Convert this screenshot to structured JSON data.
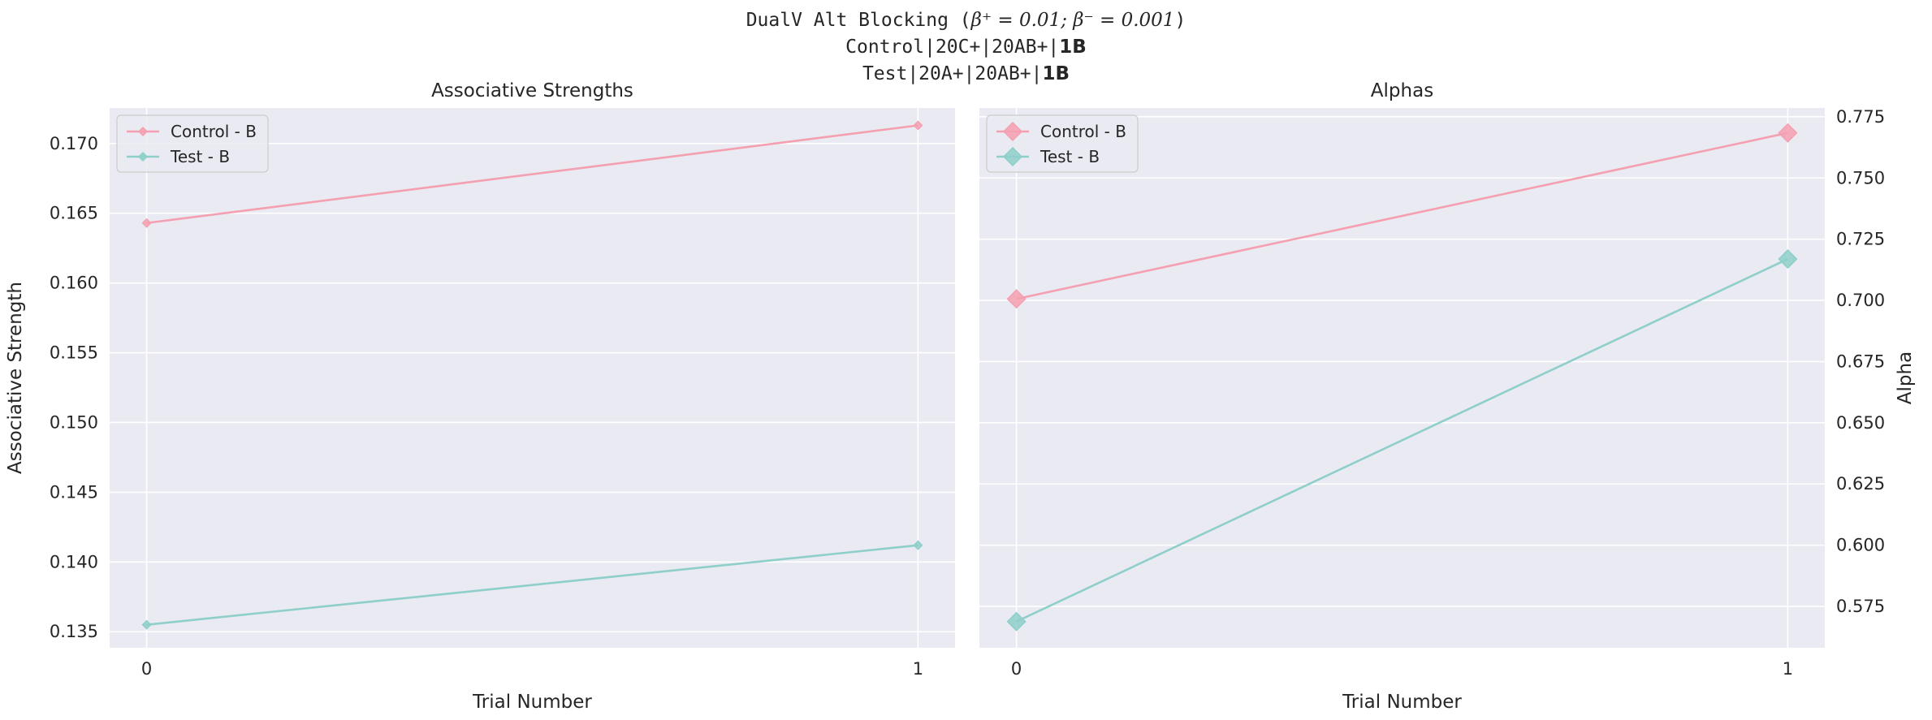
{
  "figure": {
    "suptitle_line1_prefix": "DualV Alt Blocking (",
    "suptitle_line1_math": "β⁺ = 0.01; β⁻ = 0.001",
    "suptitle_line1_suffix": ")",
    "suptitle_line2_prefix": "Control|20C+|20AB+|",
    "suptitle_line2_bold": "1B",
    "suptitle_line3_prefix": "Test|20A+|20AB+|",
    "suptitle_line3_bold": "1B"
  },
  "chart_data": [
    {
      "type": "line",
      "title": "Associative Strengths",
      "xlabel": "Trial Number",
      "ylabel": "Associative Strength",
      "x": [
        0,
        1
      ],
      "xticks": [
        "0",
        "1"
      ],
      "xlim": [
        -0.048,
        1.048
      ],
      "ylim": [
        0.13385,
        0.17255
      ],
      "yticks": [
        "0.135",
        "0.140",
        "0.145",
        "0.150",
        "0.155",
        "0.160",
        "0.165",
        "0.170"
      ],
      "grid": true,
      "legend": "upper-left",
      "series": [
        {
          "name": "Control - B",
          "values": [
            0.1643,
            0.1713
          ],
          "color": "#f4a0b0",
          "marker": "diamond",
          "marker_size": "small"
        },
        {
          "name": "Test - B",
          "values": [
            0.1355,
            0.1412
          ],
          "color": "#8ecfca",
          "marker": "diamond",
          "marker_size": "small"
        }
      ]
    },
    {
      "type": "line",
      "title": "Alphas",
      "xlabel": "Trial Number",
      "ylabel": "Alpha",
      "yaxis_side": "right",
      "x": [
        0,
        1
      ],
      "xticks": [
        "0",
        "1"
      ],
      "xlim": [
        -0.048,
        1.048
      ],
      "ylim": [
        0.5581,
        0.7786
      ],
      "yticks": [
        "0.575",
        "0.600",
        "0.625",
        "0.650",
        "0.675",
        "0.700",
        "0.725",
        "0.750",
        "0.775"
      ],
      "grid": true,
      "legend": "upper-left",
      "series": [
        {
          "name": "Control - B",
          "values": [
            0.7006,
            0.7684
          ],
          "color": "#f4a0b0",
          "marker": "diamond",
          "marker_size": "large"
        },
        {
          "name": "Test - B",
          "values": [
            0.5688,
            0.7169
          ],
          "color": "#8ecfca",
          "marker": "diamond",
          "marker_size": "large"
        }
      ]
    }
  ]
}
